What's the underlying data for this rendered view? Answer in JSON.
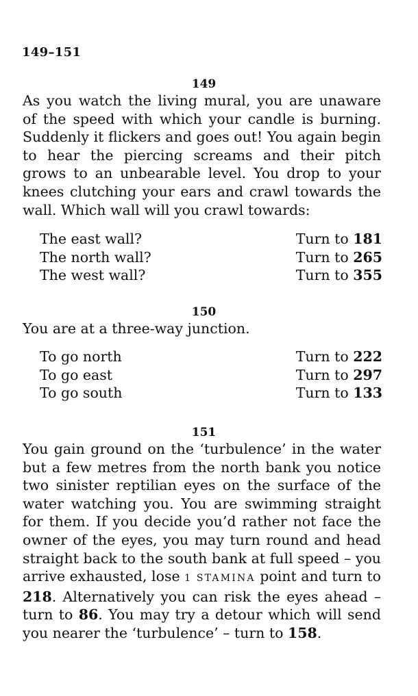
{
  "running_head": "149–151",
  "sections": [
    {
      "number": "149",
      "text": "As you watch the living mural, you are unaware of the speed with which your candle is burning. Suddenly it flickers and goes out! You again begin to hear the piercing screams and their pitch grows to an unbearable level. You drop to your knees clutching your ears and crawl towards the wall. Which wall will you crawl towards:",
      "choices": [
        {
          "label": "The east wall?",
          "turn_prefix": "Turn to",
          "turn_number": "181"
        },
        {
          "label": "The north wall?",
          "turn_prefix": "Turn to",
          "turn_number": "265"
        },
        {
          "label": "The west wall?",
          "turn_prefix": "Turn to",
          "turn_number": "355"
        }
      ]
    },
    {
      "number": "150",
      "text": "You are at a three-way junction.",
      "choices": [
        {
          "label": "To go north",
          "turn_prefix": "Turn to",
          "turn_number": "222"
        },
        {
          "label": "To go east",
          "turn_prefix": "Turn to",
          "turn_number": "297"
        },
        {
          "label": "To go south",
          "turn_prefix": "Turn to",
          "turn_number": "133"
        }
      ]
    },
    {
      "number": "151",
      "text_parts": {
        "p1": "You gain ground on the ‘turbulence’ in the water but a few metres from the north bank you notice two sinister reptilian eyes on the surface of the water watching you. You are swimming straight for them. If you decide you’d rather not face the owner of the eyes, you may turn round and head straight back to the south bank at full speed – you arrive exhausted, lose ",
        "n1": "1",
        "stamina": "stamina",
        "p2": " point and turn to ",
        "t1": "218",
        "p3": ". Alternatively you can risk the eyes ahead – turn to ",
        "t2": "86",
        "p4": ". You may try a detour which will send you nearer the ‘turbulence’ – turn to ",
        "t3": "158",
        "p5": "."
      }
    }
  ]
}
